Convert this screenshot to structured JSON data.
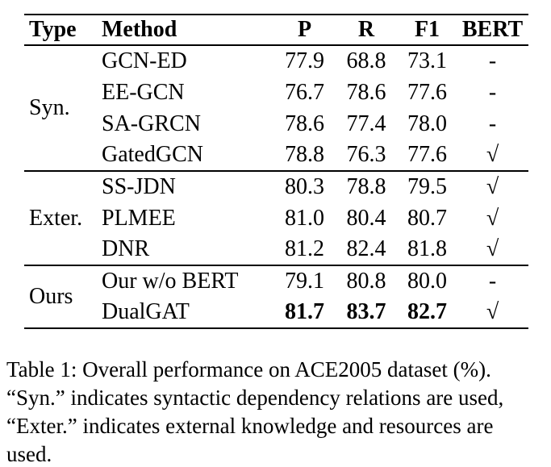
{
  "table": {
    "headers": {
      "type": "Type",
      "method": "Method",
      "p": "P",
      "r": "R",
      "f1": "F1",
      "bert": "BERT"
    },
    "groups": [
      {
        "type": "Syn.",
        "rows": [
          {
            "method": "GCN-ED",
            "p": "77.9",
            "r": "68.8",
            "f1": "73.1",
            "bert": "-"
          },
          {
            "method": "EE-GCN",
            "p": "76.7",
            "r": "78.6",
            "f1": "77.6",
            "bert": "-"
          },
          {
            "method": "SA-GRCN",
            "p": "78.6",
            "r": "77.4",
            "f1": "78.0",
            "bert": "-"
          },
          {
            "method": "GatedGCN",
            "p": "78.8",
            "r": "76.3",
            "f1": "77.6",
            "bert": "√"
          }
        ]
      },
      {
        "type": "Exter.",
        "rows": [
          {
            "method": "SS-JDN",
            "p": "80.3",
            "r": "78.8",
            "f1": "79.5",
            "bert": "√"
          },
          {
            "method": "PLMEE",
            "p": "81.0",
            "r": "80.4",
            "f1": "80.7",
            "bert": "√"
          },
          {
            "method": "DNR",
            "p": "81.2",
            "r": "82.4",
            "f1": "81.8",
            "bert": "√"
          }
        ]
      },
      {
        "type": "Ours",
        "rows": [
          {
            "method": "Our w/o BERT",
            "p": "79.1",
            "r": "80.8",
            "f1": "80.0",
            "bert": "-"
          },
          {
            "method": "DualGAT",
            "p": "81.7",
            "r": "83.7",
            "f1": "82.7",
            "bert": "√"
          }
        ]
      }
    ]
  },
  "caption": {
    "lines": [
      "Table 1: Overall performance on ACE2005 dataset (%).",
      "“Syn.” indicates syntactic dependency relations are used,",
      "“Exter.” indicates external knowledge and resources are",
      "used."
    ]
  }
}
